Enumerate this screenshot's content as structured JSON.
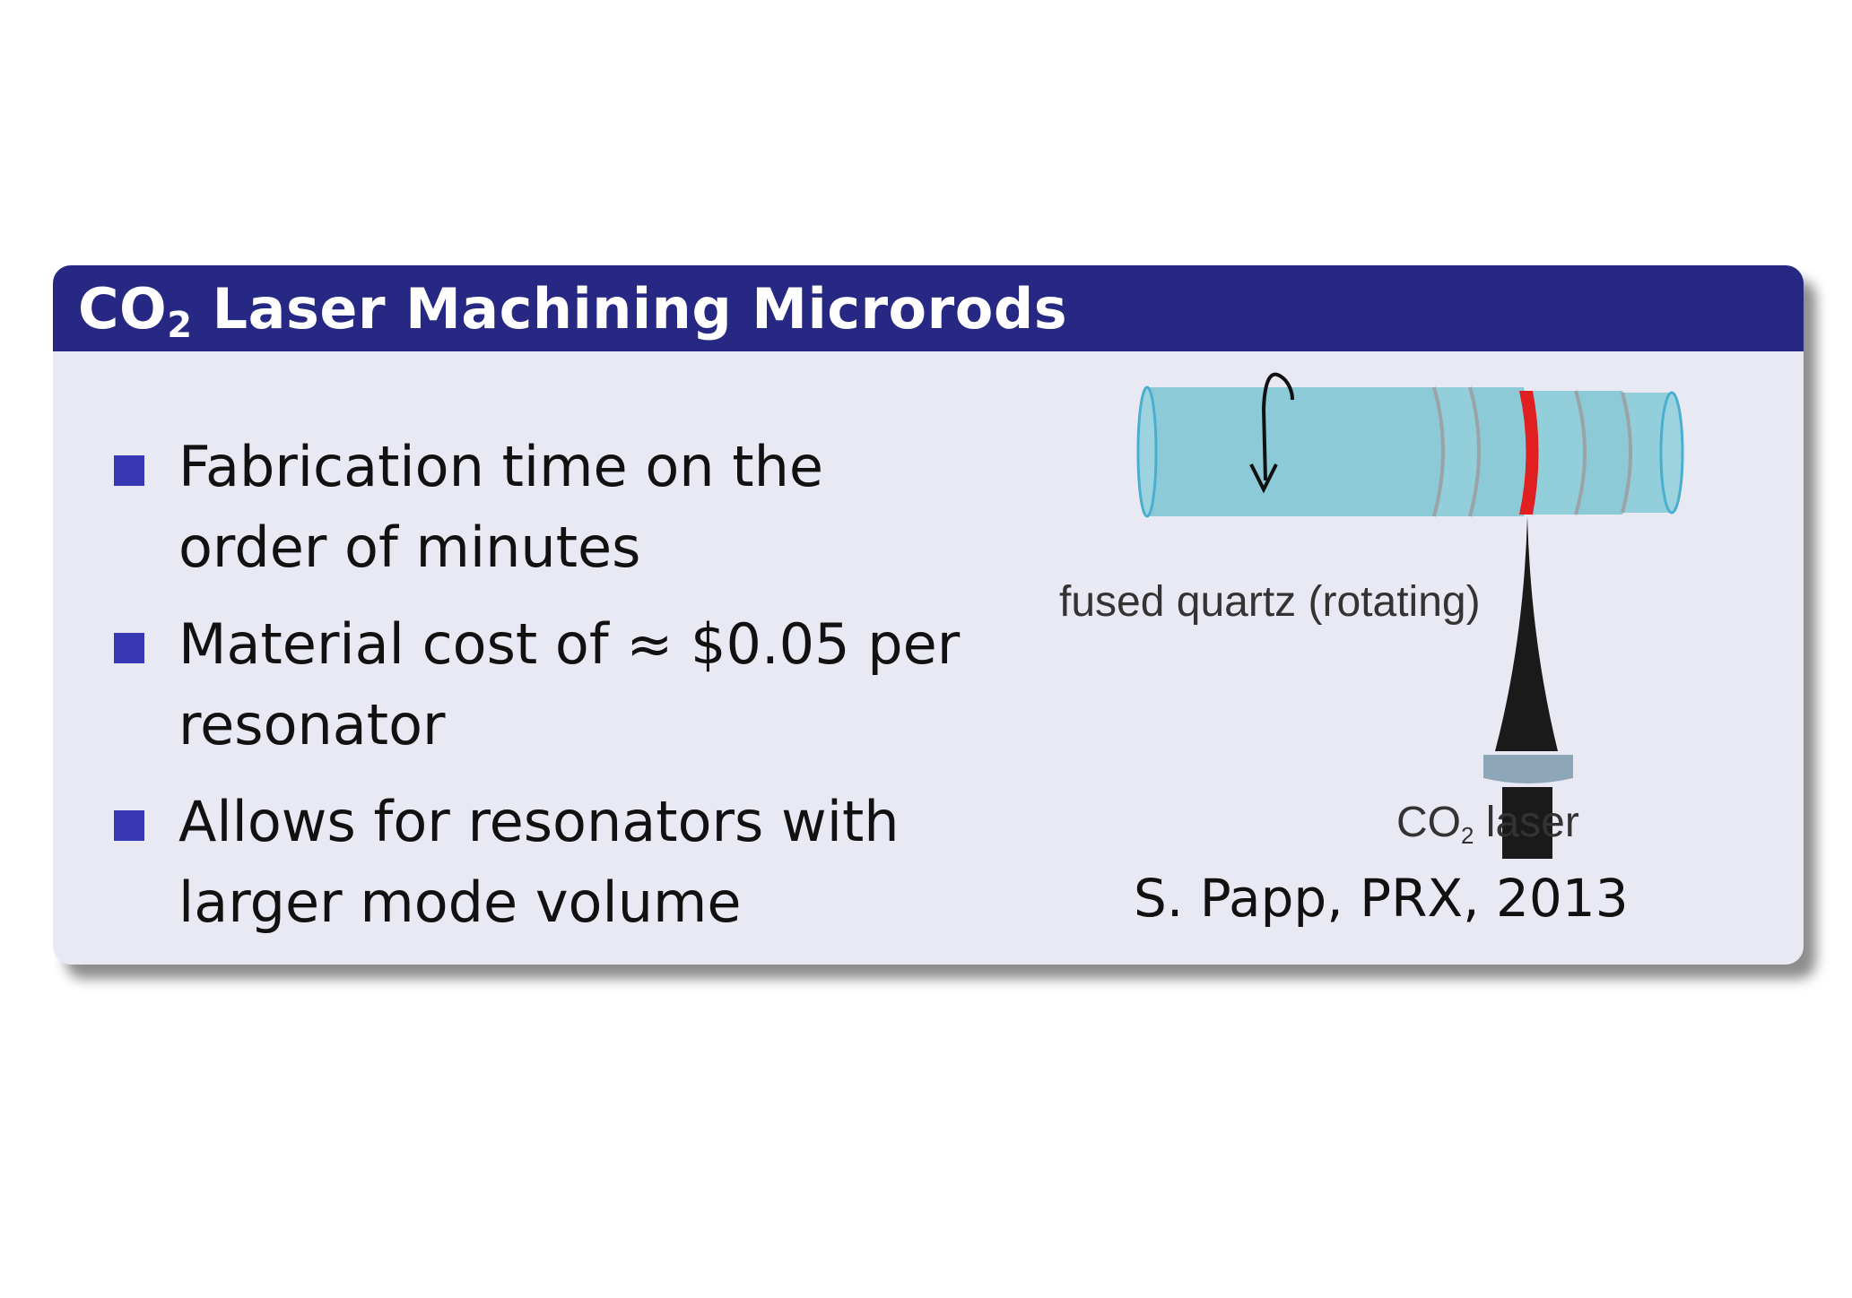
{
  "slide": {
    "title_main": "CO",
    "title_sub": "2",
    "title_rest": " Laser Machining Microrods",
    "bullets": [
      "Fabrication time on the order of minutes",
      "Material cost of ≈ $0.05 per resonator",
      "Allows for resonators with larger mode volume"
    ],
    "figure": {
      "label_quartz": "fused quartz (rotating)",
      "label_laser_main": "CO",
      "label_laser_sub": "2",
      "label_laser_rest": " laser"
    },
    "citation": "S. Papp, PRX, 2013"
  },
  "colors": {
    "header_bg": "#272784",
    "block_bg": "#e9e9f3",
    "bullet_marker": "#3838b5",
    "quartz": "#8ccad8",
    "laser_spot": "#e02020",
    "laser_beam": "#1a1a1a",
    "lens": "#8ea7b8"
  },
  "icons": {
    "rotation": "rotation-arrow-icon",
    "bullet": "square-bullet-icon"
  }
}
